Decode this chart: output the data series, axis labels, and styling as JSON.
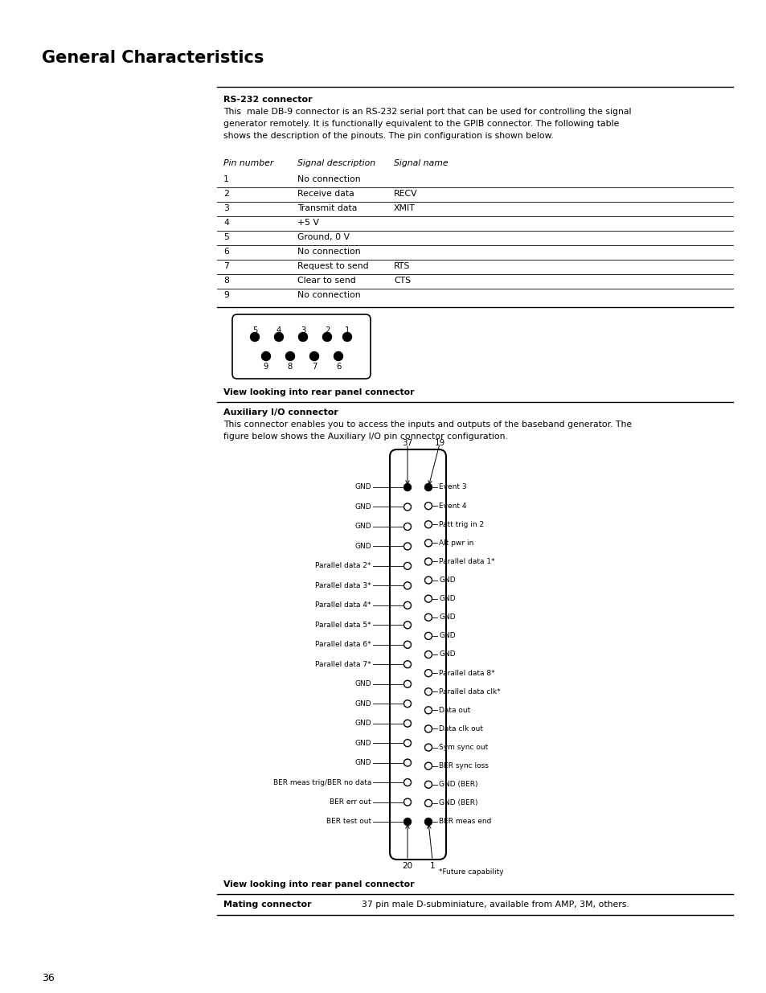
{
  "title": "General Characteristics",
  "page_number": "36",
  "rs232_heading": "RS-232 connector",
  "rs232_body": "This  male DB-9 connector is an RS-232 serial port that can be used for controlling the signal\ngenerator remotely. It is functionally equivalent to the GPIB connector. The following table\nshows the description of the pinouts. The pin configuration is shown below.",
  "table_header": [
    "Pin number",
    "Signal description",
    "Signal name"
  ],
  "table_rows": [
    [
      "1",
      "No connection",
      ""
    ],
    [
      "2",
      "Receive data",
      "RECV"
    ],
    [
      "3",
      "Transmit data",
      "XMIT"
    ],
    [
      "4",
      "+5 V",
      ""
    ],
    [
      "5",
      "Ground, 0 V",
      ""
    ],
    [
      "6",
      "No connection",
      ""
    ],
    [
      "7",
      "Request to send",
      "RTS"
    ],
    [
      "8",
      "Clear to send",
      "CTS"
    ],
    [
      "9",
      "No connection",
      ""
    ]
  ],
  "view_caption": "View looking into rear panel connector",
  "aux_heading": "Auxiliary I/O connector",
  "aux_body": "This connector enables you to access the inputs and outputs of the baseband generator. The\nfigure below shows the Auxiliary I/O pin connector configuration.",
  "left_labels": [
    "GND",
    "GND",
    "GND",
    "GND",
    "Parallel data 2*",
    "Parallel data 3*",
    "Parallel data 4*",
    "Parallel data 5*",
    "Parallel data 6*",
    "Parallel data 7*",
    "GND",
    "GND",
    "GND",
    "GND",
    "GND",
    "BER meas trig/BER no data",
    "BER err out",
    "BER test out"
  ],
  "right_labels": [
    "Event 3",
    "Event 4",
    "Patt trig in 2",
    "Alt pwr in",
    "Parallel data 1*",
    "GND",
    "GND",
    "GND",
    "GND",
    "GND",
    "Parallel data 8*",
    "Parallel data clk*",
    "Data out",
    "Data clk out",
    "Sym sync out",
    "BER sync loss",
    "GND (BER)",
    "GND (BER)",
    "BER meas end"
  ],
  "future_capability_note": "*Future capability",
  "view_caption2": "View looking into rear panel connector",
  "mating_label": "Mating connector",
  "mating_value": "37 pin male D-subminiature, available from AMP, 3M, others.",
  "background_color": "#ffffff",
  "text_color": "#000000"
}
